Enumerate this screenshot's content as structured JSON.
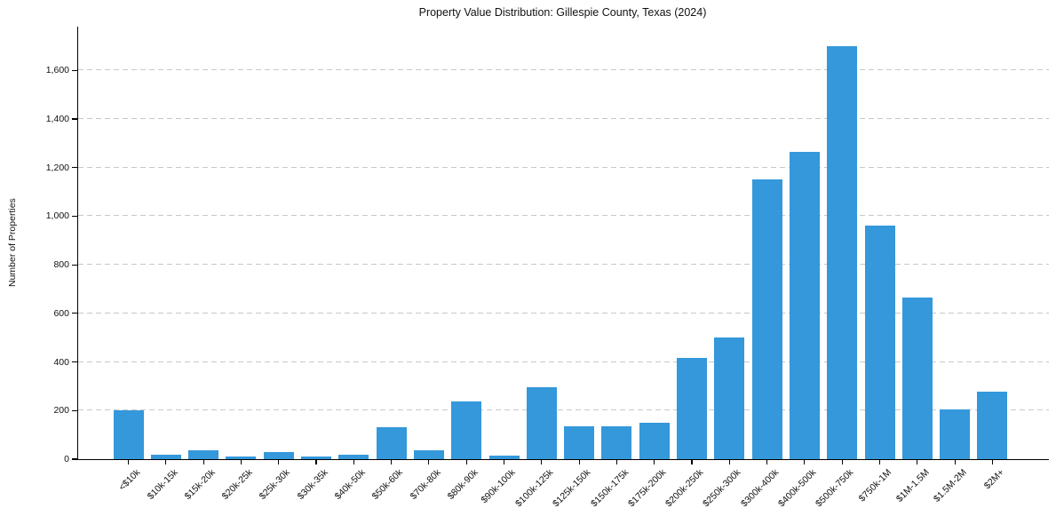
{
  "figure": {
    "background": "#ffffff"
  },
  "chart_data": {
    "type": "bar",
    "title": "Property Value Distribution: Gillespie County, Texas (2024)",
    "ylabel": "Number of Properties",
    "xlabel": "",
    "categories": [
      "<$10k",
      "$10k-15k",
      "$15k-20k",
      "$20k-25k",
      "$25k-30k",
      "$30k-35k",
      "$40k-50k",
      "$50k-60k",
      "$70k-80k",
      "$80k-90k",
      "$90k-100k",
      "$100k-125k",
      "$125k-150k",
      "$150k-175k",
      "$175k-200k",
      "$200k-250k",
      "$250k-300k",
      "$300k-400k",
      "$400k-500k",
      "$500k-750k",
      "$750k-1M",
      "$1M-1.5M",
      "$1.5M-2M",
      "$2M+"
    ],
    "values": [
      200,
      20,
      35,
      10,
      30,
      10,
      20,
      130,
      35,
      238,
      15,
      297,
      135,
      135,
      150,
      418,
      500,
      1150,
      1265,
      1700,
      963,
      665,
      205,
      278
    ],
    "yticks": [
      0,
      200,
      400,
      600,
      800,
      1000,
      1200,
      1400,
      1600
    ],
    "ylim": [
      0,
      1780
    ],
    "grid": "horizontal-dashed",
    "legend_position": "none",
    "bar_color": "#3498db",
    "grid_color": "#c8c8c8",
    "axis_color": "#000000",
    "text_color": "#111111"
  }
}
